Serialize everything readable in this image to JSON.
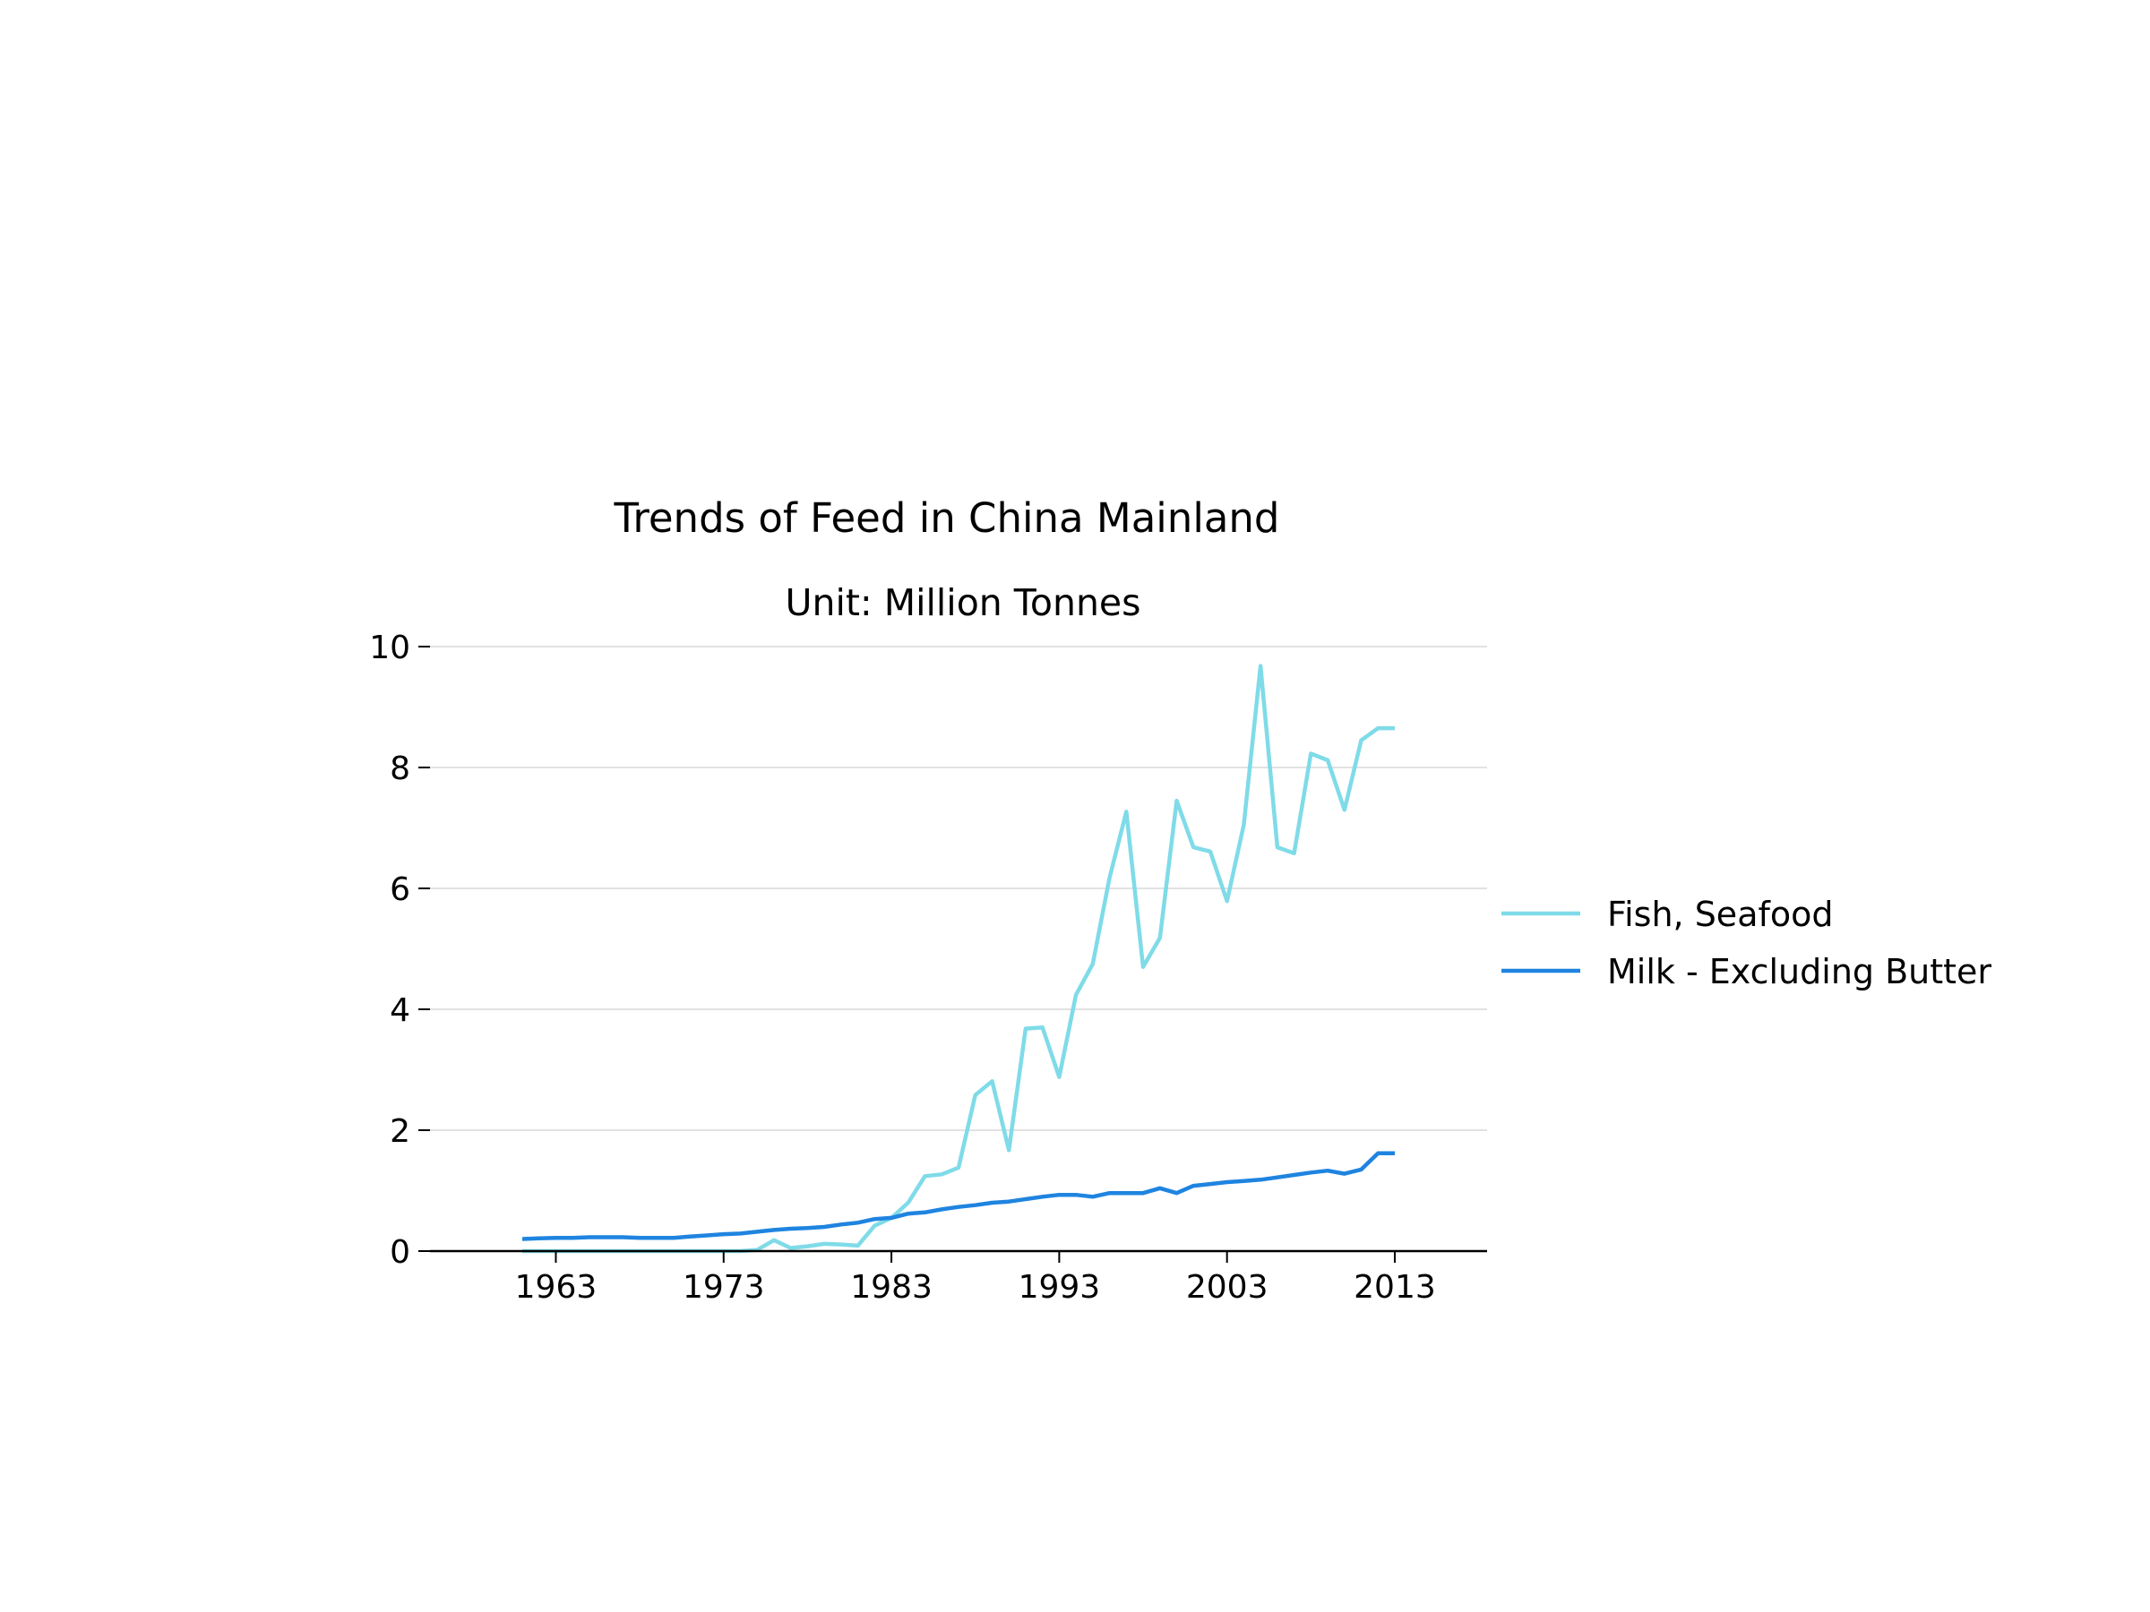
{
  "chart_data": {
    "type": "line",
    "title": "Trends of Feed in China Mainland",
    "subtitle": "Unit: Million Tonnes",
    "xlabel": "",
    "ylabel": "",
    "xlim": [
      1955.5,
      2018.5
    ],
    "ylim": [
      0,
      10
    ],
    "x_ticks": [
      1963,
      1973,
      1983,
      1993,
      2003,
      2013
    ],
    "y_ticks": [
      0,
      2,
      4,
      6,
      8,
      10
    ],
    "x_tick_labels": [
      "1963",
      "1973",
      "1983",
      "1993",
      "2003",
      "2013"
    ],
    "y_tick_labels": [
      "0",
      "2",
      "4",
      "6",
      "8",
      "10"
    ],
    "grid": "horizontal",
    "legend_position": "right",
    "x": [
      1961,
      1962,
      1963,
      1964,
      1965,
      1966,
      1967,
      1968,
      1969,
      1970,
      1971,
      1972,
      1973,
      1974,
      1975,
      1976,
      1977,
      1978,
      1979,
      1980,
      1981,
      1982,
      1983,
      1984,
      1985,
      1986,
      1987,
      1988,
      1989,
      1990,
      1991,
      1992,
      1993,
      1994,
      1995,
      1996,
      1997,
      1998,
      1999,
      2000,
      2001,
      2002,
      2003,
      2004,
      2005,
      2006,
      2007,
      2008,
      2009,
      2010,
      2011,
      2012,
      2013
    ],
    "series": [
      {
        "name": "Fish, Seafood",
        "color": "#7fdbe8",
        "values": [
          0.0,
          0.0,
          0.0,
          0.0,
          0.0,
          0.0,
          0.0,
          0.0,
          0.0,
          0.0,
          0.0,
          0.0,
          0.0,
          0.0,
          0.02,
          0.18,
          0.05,
          0.08,
          0.12,
          0.11,
          0.09,
          0.42,
          0.55,
          0.8,
          1.24,
          1.27,
          1.38,
          2.58,
          2.81,
          1.67,
          3.68,
          3.7,
          2.88,
          4.24,
          4.75,
          6.18,
          7.27,
          4.7,
          5.18,
          7.45,
          6.68,
          6.61,
          5.79,
          7.05,
          9.68,
          6.68,
          6.58,
          8.23,
          8.12,
          7.3,
          8.45,
          8.65,
          8.65
        ]
      },
      {
        "name": "Milk - Excluding Butter",
        "color": "#1f84e0",
        "values": [
          0.2,
          0.21,
          0.22,
          0.22,
          0.23,
          0.23,
          0.23,
          0.22,
          0.22,
          0.22,
          0.24,
          0.26,
          0.28,
          0.29,
          0.32,
          0.35,
          0.37,
          0.38,
          0.4,
          0.44,
          0.47,
          0.53,
          0.55,
          0.62,
          0.64,
          0.69,
          0.73,
          0.76,
          0.8,
          0.82,
          0.86,
          0.9,
          0.93,
          0.93,
          0.9,
          0.96,
          0.96,
          0.96,
          1.04,
          0.96,
          1.08,
          1.11,
          1.14,
          1.16,
          1.18,
          1.22,
          1.26,
          1.3,
          1.33,
          1.28,
          1.35,
          1.62,
          1.62
        ]
      }
    ]
  }
}
